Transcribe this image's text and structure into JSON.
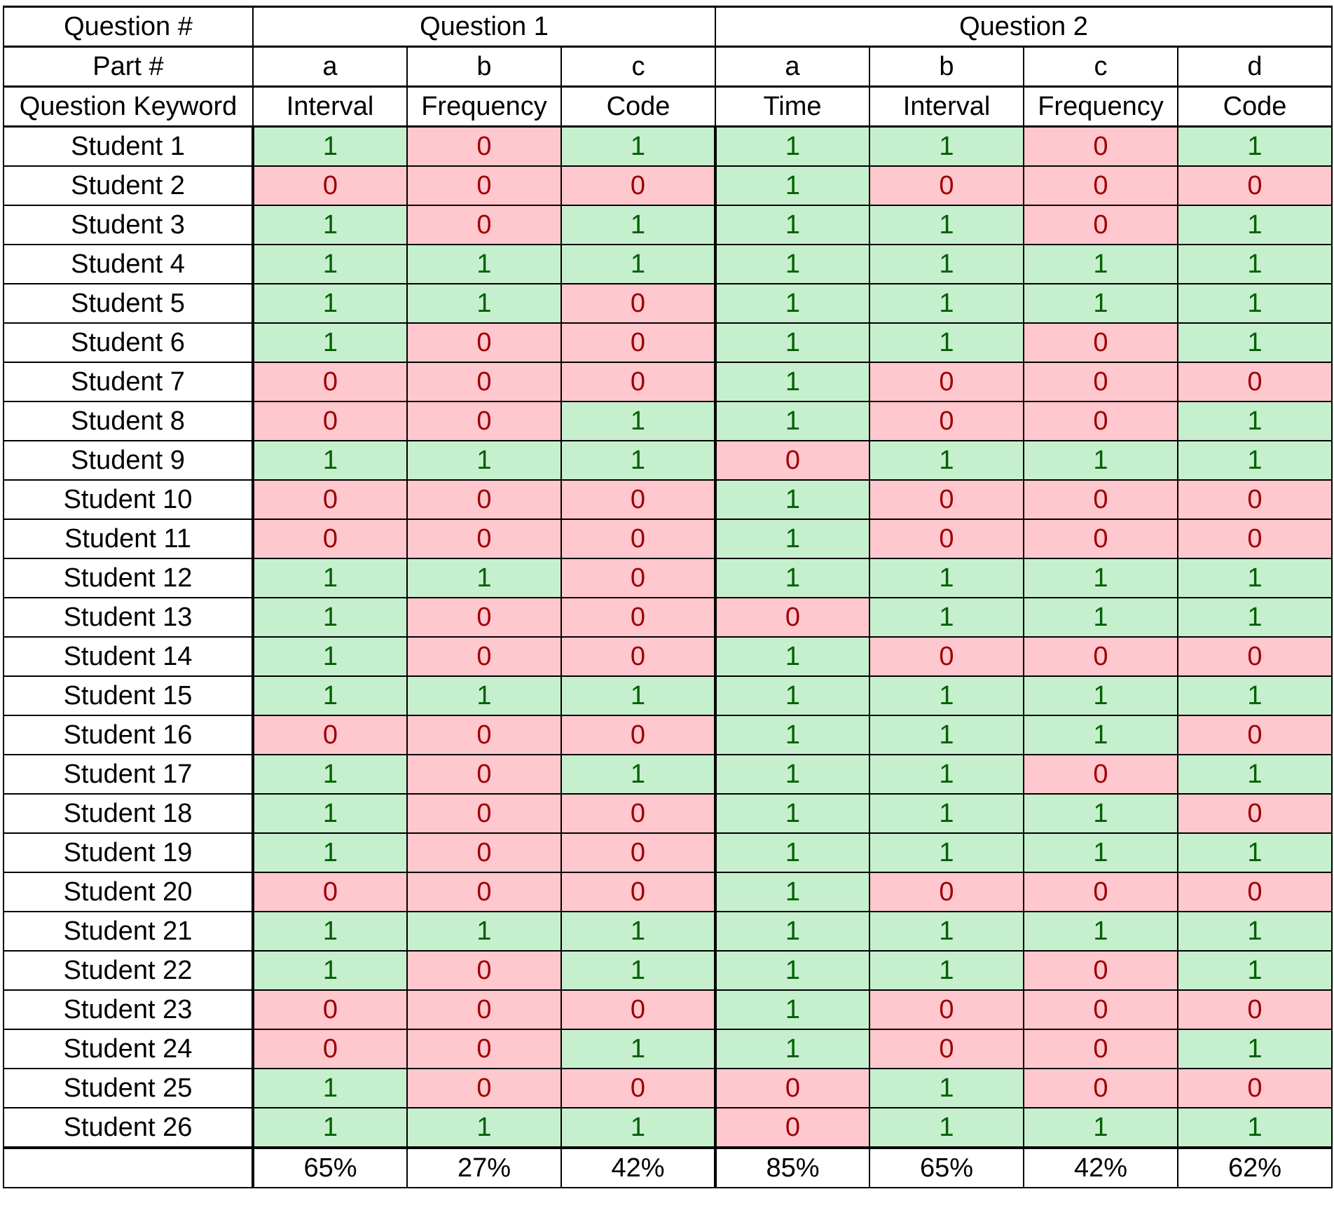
{
  "header": {
    "question_label": "Question #",
    "part_label": "Part #",
    "keyword_label": "Question Keyword",
    "questions": [
      {
        "label": "Question 1",
        "parts": [
          "a",
          "b",
          "c"
        ],
        "keywords": [
          "Interval",
          "Frequency",
          "Code"
        ]
      },
      {
        "label": "Question 2",
        "parts": [
          "a",
          "b",
          "c",
          "d"
        ],
        "keywords": [
          "Time",
          "Interval",
          "Frequency",
          "Code"
        ]
      }
    ]
  },
  "students": [
    {
      "name": "Student 1",
      "scores": [
        "1",
        "0",
        "1",
        "1",
        "1",
        "0",
        "1"
      ]
    },
    {
      "name": "Student 2",
      "scores": [
        "0",
        "0",
        "0",
        "1",
        "0",
        "0",
        "0"
      ]
    },
    {
      "name": "Student 3",
      "scores": [
        "1",
        "0",
        "1",
        "1",
        "1",
        "0",
        "1"
      ]
    },
    {
      "name": "Student 4",
      "scores": [
        "1",
        "1",
        "1",
        "1",
        "1",
        "1",
        "1"
      ]
    },
    {
      "name": "Student 5",
      "scores": [
        "1",
        "1",
        "0",
        "1",
        "1",
        "1",
        "1"
      ]
    },
    {
      "name": "Student 6",
      "scores": [
        "1",
        "0",
        "0",
        "1",
        "1",
        "0",
        "1"
      ]
    },
    {
      "name": "Student 7",
      "scores": [
        "0",
        "0",
        "0",
        "1",
        "0",
        "0",
        "0"
      ]
    },
    {
      "name": "Student 8",
      "scores": [
        "0",
        "0",
        "1",
        "1",
        "0",
        "0",
        "1"
      ]
    },
    {
      "name": "Student 9",
      "scores": [
        "1",
        "1",
        "1",
        "0",
        "1",
        "1",
        "1"
      ]
    },
    {
      "name": "Student 10",
      "scores": [
        "0",
        "0",
        "0",
        "1",
        "0",
        "0",
        "0"
      ]
    },
    {
      "name": "Student 11",
      "scores": [
        "0",
        "0",
        "0",
        "1",
        "0",
        "0",
        "0"
      ]
    },
    {
      "name": "Student 12",
      "scores": [
        "1",
        "1",
        "0",
        "1",
        "1",
        "1",
        "1"
      ]
    },
    {
      "name": "Student 13",
      "scores": [
        "1",
        "0",
        "0",
        "0",
        "1",
        "1",
        "1"
      ]
    },
    {
      "name": "Student 14",
      "scores": [
        "1",
        "0",
        "0",
        "1",
        "0",
        "0",
        "0"
      ]
    },
    {
      "name": "Student 15",
      "scores": [
        "1",
        "1",
        "1",
        "1",
        "1",
        "1",
        "1"
      ]
    },
    {
      "name": "Student 16",
      "scores": [
        "0",
        "0",
        "0",
        "1",
        "1",
        "1",
        "0"
      ]
    },
    {
      "name": "Student 17",
      "scores": [
        "1",
        "0",
        "1",
        "1",
        "1",
        "0",
        "1"
      ]
    },
    {
      "name": "Student 18",
      "scores": [
        "1",
        "0",
        "0",
        "1",
        "1",
        "1",
        "0"
      ]
    },
    {
      "name": "Student 19",
      "scores": [
        "1",
        "0",
        "0",
        "1",
        "1",
        "1",
        "1"
      ]
    },
    {
      "name": "Student 20",
      "scores": [
        "0",
        "0",
        "0",
        "1",
        "0",
        "0",
        "0"
      ]
    },
    {
      "name": "Student 21",
      "scores": [
        "1",
        "1",
        "1",
        "1",
        "1",
        "1",
        "1"
      ]
    },
    {
      "name": "Student 22",
      "scores": [
        "1",
        "0",
        "1",
        "1",
        "1",
        "0",
        "1"
      ]
    },
    {
      "name": "Student 23",
      "scores": [
        "0",
        "0",
        "0",
        "1",
        "0",
        "0",
        "0"
      ]
    },
    {
      "name": "Student 24",
      "scores": [
        "0",
        "0",
        "1",
        "1",
        "0",
        "0",
        "1"
      ]
    },
    {
      "name": "Student 25",
      "scores": [
        "1",
        "0",
        "0",
        "0",
        "1",
        "0",
        "0"
      ]
    },
    {
      "name": "Student 26",
      "scores": [
        "1",
        "1",
        "1",
        "0",
        "1",
        "1",
        "1"
      ]
    }
  ],
  "totals": {
    "label": "",
    "values": [
      "65%",
      "27%",
      "42%",
      "85%",
      "65%",
      "42%",
      "62%"
    ]
  },
  "colors": {
    "correct_fill": "#c6efce",
    "correct_text": "#006100",
    "incorrect_fill": "#ffc7ce",
    "incorrect_text": "#9c0006"
  }
}
